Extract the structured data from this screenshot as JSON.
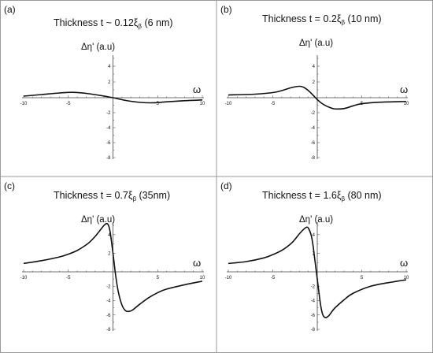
{
  "chart_data": [
    {
      "type": "line",
      "panel_label": "(a)",
      "title": "Thickness  t ~ 0.12ξ",
      "title_sub": "β",
      "title_tail": " (6 nm)",
      "ylabel": "Δη' (a.u)",
      "xlabel": "ω",
      "xlim": [
        -10,
        10
      ],
      "ylim": [
        -8,
        5
      ],
      "x_ticks": [
        "-10",
        "-5",
        "5",
        "10"
      ],
      "y_ticks": [
        "4",
        "2",
        "-2",
        "-4",
        "-6",
        "-8"
      ],
      "series": [
        {
          "x": [
            -10,
            -8,
            -6,
            -4.5,
            -3,
            -1.5,
            0,
            1.5,
            3,
            4.5,
            6,
            8,
            10
          ],
          "values": [
            0.2,
            0.4,
            0.6,
            0.68,
            0.55,
            0.3,
            0.0,
            -0.38,
            -0.62,
            -0.68,
            -0.55,
            -0.4,
            -0.3
          ]
        }
      ]
    },
    {
      "type": "line",
      "panel_label": "(b)",
      "title": "Thickness  t = 0.2ξ",
      "title_sub": "β",
      "title_tail": " (10 nm)",
      "ylabel": "Δη' (a.u)",
      "xlabel": "ω",
      "xlim": [
        -10,
        10
      ],
      "ylim": [
        -8,
        5
      ],
      "x_ticks": [
        "-10",
        "-5",
        "5",
        "10"
      ],
      "y_ticks": [
        "4",
        "2",
        "-2",
        "-4",
        "-6",
        "-8"
      ],
      "series": [
        {
          "x": [
            -10,
            -7,
            -5,
            -4,
            -3,
            -2,
            -1.5,
            -1,
            -0.5,
            0,
            0.5,
            1,
            1.5,
            2,
            3,
            4,
            5,
            7,
            10
          ],
          "values": [
            0.35,
            0.45,
            0.65,
            0.9,
            1.25,
            1.45,
            1.3,
            0.9,
            0.35,
            -0.25,
            -0.75,
            -1.1,
            -1.35,
            -1.5,
            -1.45,
            -1.1,
            -0.8,
            -0.6,
            -0.5
          ]
        }
      ]
    },
    {
      "type": "line",
      "panel_label": "(c)",
      "title": "Thickness t = 0.7ξ",
      "title_sub": "β",
      "title_tail": " (35nm)",
      "ylabel": "Δη' (a.u)",
      "xlabel": "ω",
      "xlim": [
        -10,
        10
      ],
      "ylim": [
        -8,
        5
      ],
      "x_ticks": [
        "-10",
        "-5",
        "5",
        "10"
      ],
      "y_ticks": [
        "4",
        "2",
        "-2",
        "-4",
        "-6",
        "-8"
      ],
      "series": [
        {
          "x": [
            -10,
            -8,
            -6,
            -5,
            -4,
            -3,
            -2.5,
            -2,
            -1.5,
            -1,
            -0.7,
            -0.5,
            -0.3,
            0,
            0.3,
            0.6,
            1,
            1.4,
            1.8,
            2.2,
            3,
            4,
            5,
            6,
            8,
            10
          ],
          "values": [
            0.9,
            1.2,
            1.6,
            1.9,
            2.3,
            2.9,
            3.3,
            3.8,
            4.4,
            5.0,
            5.2,
            5.0,
            4.2,
            2.0,
            -0.5,
            -2.8,
            -4.6,
            -5.4,
            -5.5,
            -5.3,
            -4.5,
            -3.6,
            -2.9,
            -2.4,
            -1.8,
            -1.3
          ]
        }
      ]
    },
    {
      "type": "line",
      "panel_label": "(d)",
      "title": "Thickness t = 1.6ξ",
      "title_sub": "β",
      "title_tail": " (80 nm)",
      "ylabel": "Δη' (a.u)",
      "xlabel": "ω",
      "xlim": [
        -10,
        10
      ],
      "ylim": [
        -8,
        5
      ],
      "x_ticks": [
        "-10",
        "-5",
        "5",
        "10"
      ],
      "y_ticks": [
        "4",
        "2",
        "-2",
        "-4",
        "-6",
        "-8"
      ],
      "series": [
        {
          "x": [
            -10,
            -8,
            -6,
            -5,
            -4,
            -3,
            -2.5,
            -2,
            -1.5,
            -1.2,
            -1,
            -0.7,
            -0.5,
            -0.3,
            0,
            0.2,
            0.4,
            0.6,
            0.8,
            1,
            1.3,
            1.6,
            2,
            3,
            4,
            6,
            8,
            10
          ],
          "values": [
            0.9,
            1.1,
            1.5,
            1.85,
            2.3,
            3.0,
            3.5,
            4.1,
            4.6,
            4.8,
            4.7,
            4.0,
            3.0,
            1.5,
            -1.0,
            -3.0,
            -4.8,
            -5.9,
            -6.3,
            -6.35,
            -6.1,
            -5.6,
            -5.0,
            -3.9,
            -3.0,
            -2.0,
            -1.5,
            -1.1
          ]
        }
      ]
    }
  ]
}
